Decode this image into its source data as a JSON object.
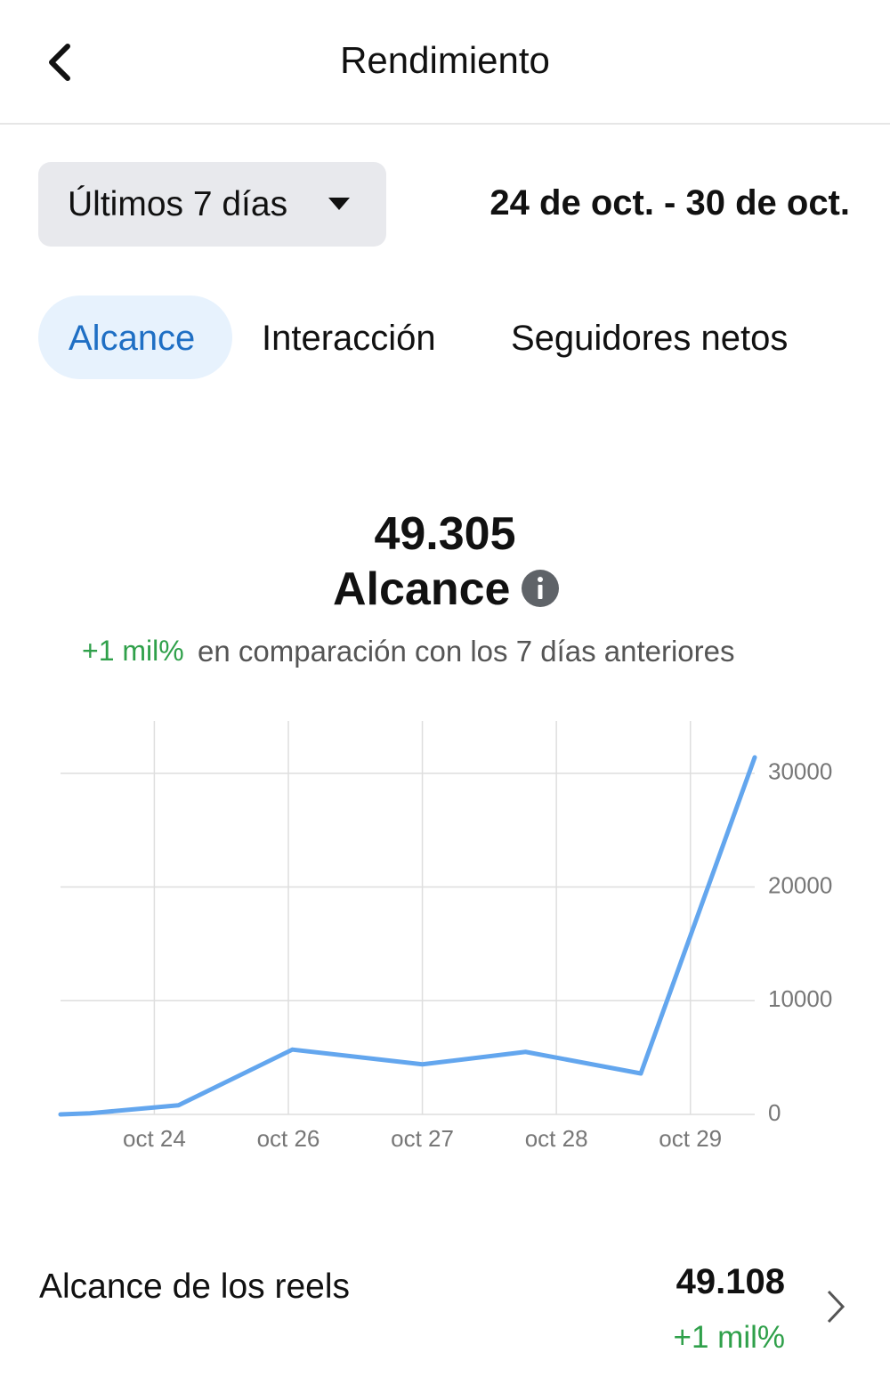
{
  "header": {
    "title": "Rendimiento"
  },
  "filter": {
    "period": "Últimos 7 días",
    "date_range": "24 de oct. - 30 de oct."
  },
  "tabs": [
    "Alcance",
    "Interacción",
    "Seguidores netos"
  ],
  "summary": {
    "value": "49.305",
    "label": "Alcance",
    "change": "+1 mil%",
    "comparison": "en comparación con los 7 días anteriores"
  },
  "chart_data": {
    "type": "line",
    "color": "#63a6ee",
    "x": [
      0.3,
      0.52,
      1.18,
      2.03,
      3.0,
      3.77,
      4.63,
      5.48
    ],
    "values": [
      0,
      100,
      800,
      5700,
      4400,
      5500,
      3600,
      31400
    ],
    "xlim": [
      0.3,
      5.48
    ],
    "xticks": [
      {
        "value": 1,
        "label": "oct 24"
      },
      {
        "value": 2,
        "label": "oct 26"
      },
      {
        "value": 3,
        "label": "oct 27"
      },
      {
        "value": 4,
        "label": "oct 28"
      },
      {
        "value": 5,
        "label": "oct 29"
      }
    ],
    "ylim": [
      0,
      34600
    ],
    "yticks": [
      0,
      10000,
      20000,
      30000
    ],
    "grid": true
  },
  "rows": [
    {
      "label": "Alcance de los reels",
      "value": "49.108",
      "change": "+1 mil%"
    }
  ]
}
